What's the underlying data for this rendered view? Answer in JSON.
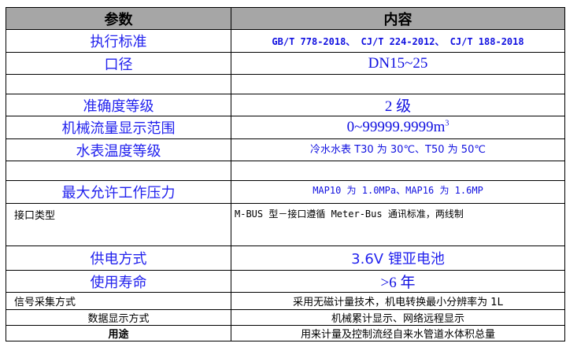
{
  "table": {
    "headers": [
      "参数",
      "内容"
    ],
    "rows": [
      {
        "param": "执行标准",
        "value": "GB/T 778-2018、 CJ/T 224-2012、 CJ/T 188-2018"
      },
      {
        "param": "口径",
        "value": "DN15~25"
      },
      {
        "param": "",
        "value": ""
      },
      {
        "param": "准确度等级",
        "value": "2 级"
      },
      {
        "param": "机械流量显示范围",
        "value": "0~99999.9999m",
        "value_sup": "3"
      },
      {
        "param": "水表温度等级",
        "value": "冷水水表 T30 为 30℃、T50 为 50℃"
      },
      {
        "param": "",
        "value": ""
      },
      {
        "param": "最大允许工作压力",
        "value": "MAP10 为 1.0MPa、MAP16 为 1.6MP"
      },
      {
        "param": "接口类型",
        "value": "M-BUS 型－接口遵循 Meter-Bus 通讯标准，两线制"
      },
      {
        "param": "供电方式",
        "value": "3.6V 锂亚电池"
      },
      {
        "param": "使用寿命",
        "value": ">6 年"
      },
      {
        "param": "信号采集方式",
        "value": "采用无磁计量技术，机电转换最小分辨率为 1L"
      },
      {
        "param": "数据显示方式",
        "value": "机械累计显示、网络远程显示"
      },
      {
        "param": "用途",
        "value": "用来计量及控制流经自来水管道水体积总量"
      }
    ]
  },
  "colors": {
    "header_bg": "#a6a6a6",
    "accent_text": "#1010e0"
  }
}
